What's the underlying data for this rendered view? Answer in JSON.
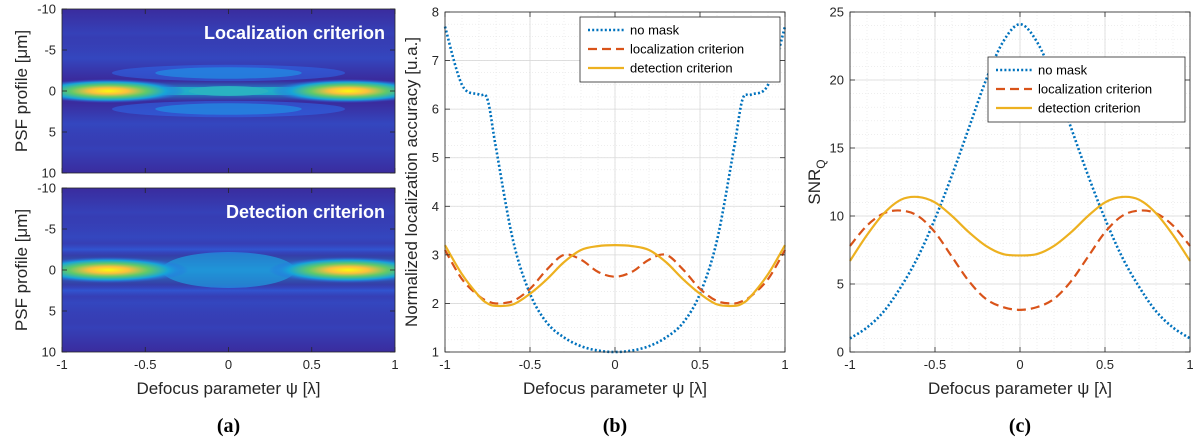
{
  "chart_data": [
    {
      "type": "heatmap",
      "panel_label": "(a)",
      "title": "Localization criterion",
      "xlabel": "Defocus parameter ψ [λ]",
      "ylabel": "PSF profile [μm]",
      "xlim": [
        -1,
        1
      ],
      "ylim": [
        10,
        -10
      ],
      "xticks": [
        "-1",
        "-0.5",
        "0",
        "0.5",
        "1"
      ],
      "yticks": [
        "-10",
        "-5",
        "0",
        "5",
        "10"
      ],
      "colormap": "parula",
      "show_xlabel": false
    },
    {
      "type": "heatmap",
      "panel_label": "(a)",
      "title": "Detection criterion",
      "xlabel": "Defocus parameter ψ [λ]",
      "ylabel": "PSF profile [μm]",
      "xlim": [
        -1,
        1
      ],
      "ylim": [
        10,
        -10
      ],
      "xticks": [
        "-1",
        "-0.5",
        "0",
        "0.5",
        "1"
      ],
      "yticks": [
        "-10",
        "-5",
        "0",
        "5",
        "10"
      ],
      "colormap": "parula",
      "show_xlabel": true
    },
    {
      "type": "line",
      "panel_label": "(b)",
      "xlabel": "Defocus parameter ψ [λ]",
      "ylabel": "Normalized localization accuracy [u.a.]",
      "xlim": [
        -1,
        1
      ],
      "ylim": [
        1,
        8
      ],
      "xticks": [
        "-1",
        "-0.5",
        "0",
        "0.5",
        "1"
      ],
      "yticks": [
        "1",
        "2",
        "3",
        "4",
        "5",
        "6",
        "7",
        "8"
      ],
      "grid": true,
      "legend": "top-right",
      "x": [
        -1,
        -0.9,
        -0.8,
        -0.75,
        -0.7,
        -0.6,
        -0.5,
        -0.4,
        -0.3,
        -0.2,
        -0.1,
        0,
        0.1,
        0.2,
        0.3,
        0.4,
        0.5,
        0.6,
        0.7,
        0.75,
        0.8,
        0.9,
        1
      ],
      "series": [
        {
          "name": "no mask",
          "style": "dotted",
          "color": "#0072BD",
          "values": [
            7.7,
            6.5,
            6.3,
            6.2,
            5.2,
            3.3,
            2.2,
            1.6,
            1.3,
            1.12,
            1.03,
            1.0,
            1.03,
            1.12,
            1.3,
            1.6,
            2.2,
            3.3,
            5.2,
            6.2,
            6.3,
            6.5,
            7.7
          ]
        },
        {
          "name": "localization criterion",
          "style": "dashed",
          "color": "#D95319",
          "values": [
            3.1,
            2.5,
            2.15,
            2.05,
            2.0,
            2.05,
            2.3,
            2.7,
            3.0,
            2.9,
            2.65,
            2.55,
            2.65,
            2.9,
            3.0,
            2.7,
            2.3,
            2.05,
            2.0,
            2.05,
            2.15,
            2.5,
            3.1
          ]
        },
        {
          "name": "detection criterion",
          "style": "solid",
          "color": "#EDB120",
          "values": [
            3.2,
            2.6,
            2.15,
            2.0,
            1.95,
            1.98,
            2.2,
            2.5,
            2.85,
            3.1,
            3.18,
            3.2,
            3.18,
            3.1,
            2.85,
            2.5,
            2.2,
            1.98,
            1.95,
            2.0,
            2.15,
            2.6,
            3.2
          ]
        }
      ]
    },
    {
      "type": "line",
      "panel_label": "(c)",
      "xlabel": "Defocus parameter ψ [λ]",
      "ylabel_main": "SNR",
      "ylabel_sub": "Q",
      "xlim": [
        -1,
        1
      ],
      "ylim": [
        0,
        25
      ],
      "xticks": [
        "-1",
        "-0.5",
        "0",
        "0.5",
        "1"
      ],
      "yticks": [
        "0",
        "5",
        "10",
        "15",
        "20",
        "25"
      ],
      "grid": true,
      "legend": "top-right",
      "x": [
        -1,
        -0.9,
        -0.8,
        -0.7,
        -0.6,
        -0.5,
        -0.4,
        -0.3,
        -0.2,
        -0.1,
        0,
        0.1,
        0.2,
        0.3,
        0.4,
        0.5,
        0.6,
        0.7,
        0.8,
        0.9,
        1
      ],
      "series": [
        {
          "name": "no mask",
          "style": "dotted",
          "color": "#0072BD",
          "values": [
            1.0,
            1.8,
            3.0,
            4.8,
            7.0,
            9.8,
            13.0,
            16.5,
            20.0,
            22.8,
            24.1,
            22.8,
            20.0,
            16.5,
            13.0,
            9.8,
            7.0,
            4.8,
            3.0,
            1.8,
            1.0
          ]
        },
        {
          "name": "localization criterion",
          "style": "dashed",
          "color": "#D95319",
          "values": [
            7.8,
            9.3,
            10.2,
            10.4,
            10.0,
            8.8,
            7.0,
            5.2,
            3.9,
            3.3,
            3.1,
            3.3,
            3.9,
            5.2,
            7.0,
            8.8,
            10.0,
            10.4,
            10.2,
            9.3,
            7.8
          ]
        },
        {
          "name": "detection criterion",
          "style": "solid",
          "color": "#EDB120",
          "values": [
            6.7,
            8.6,
            10.2,
            11.2,
            11.4,
            11.0,
            10.0,
            8.8,
            7.8,
            7.2,
            7.1,
            7.2,
            7.8,
            8.8,
            10.0,
            11.0,
            11.4,
            11.2,
            10.2,
            8.6,
            6.7
          ]
        }
      ]
    }
  ]
}
